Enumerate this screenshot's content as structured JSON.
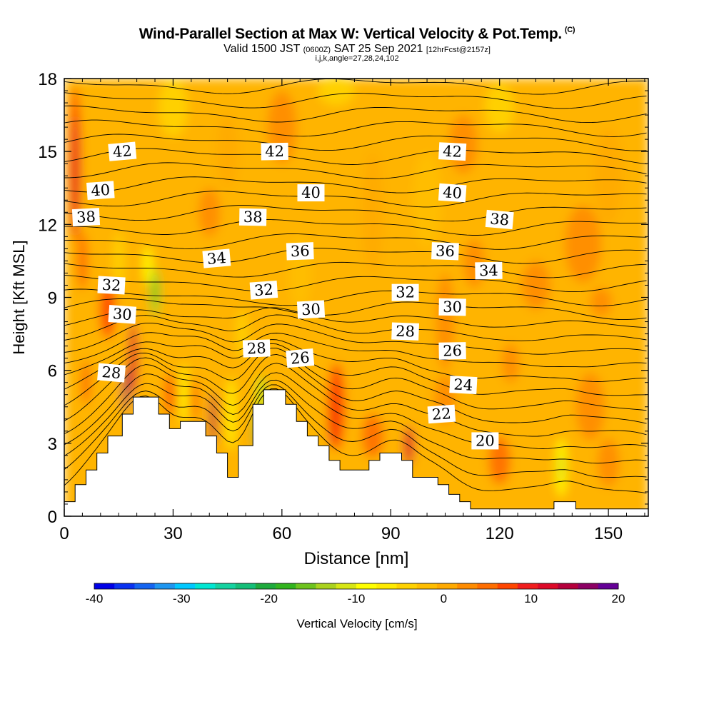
{
  "title": {
    "main": "Wind-Parallel Section at Max W: Vertical Velocity & Pot.Temp.",
    "copyright": "(C)",
    "valid_prefix": "Valid 1500 JST",
    "valid_utc": "(0600Z)",
    "valid_date": "SAT 25 Sep 2021",
    "forecast": "[12hrFcst@2157z]",
    "indices": "i,j,k,angle=27,28,24,102"
  },
  "chart_data": {
    "type": "heatmap",
    "xlabel": "Distance [nm]",
    "ylabel": "Height [Kft MSL]",
    "xlim": [
      0,
      161
    ],
    "ylim": [
      0,
      18
    ],
    "x_ticks": [
      "0",
      "30",
      "60",
      "90",
      "120",
      "150"
    ],
    "y_ticks": [
      "0",
      "3",
      "6",
      "9",
      "12",
      "15",
      "18"
    ],
    "colorbar": {
      "label": "Vertical Velocity [cm/s]",
      "min": -40,
      "max": 20,
      "step": 2.5,
      "tick_labels": [
        "-40",
        "-30",
        "-20",
        "-10",
        "0",
        "10",
        "20"
      ],
      "colors": [
        "#0000e6",
        "#0a32f0",
        "#1464f0",
        "#1e96f0",
        "#00c8ff",
        "#00e6d2",
        "#14d2a0",
        "#14be78",
        "#1eaa3c",
        "#32b41e",
        "#6ec31e",
        "#aad21e",
        "#d7e614",
        "#ffff00",
        "#ffeb00",
        "#ffd200",
        "#ffbe00",
        "#ffaa00",
        "#ff8c00",
        "#ff6e00",
        "#ff4600",
        "#f01e1e",
        "#dc0a28",
        "#b4003c",
        "#8c0064",
        "#640096"
      ]
    },
    "theta_contour_labels": [
      {
        "value": "42",
        "x": 16,
        "y": 15.0
      },
      {
        "value": "42",
        "x": 58,
        "y": 15.0
      },
      {
        "value": "42",
        "x": 107,
        "y": 15.0
      },
      {
        "value": "40",
        "x": 10,
        "y": 13.4
      },
      {
        "value": "40",
        "x": 68,
        "y": 13.3
      },
      {
        "value": "40",
        "x": 107,
        "y": 13.3
      },
      {
        "value": "38",
        "x": 6,
        "y": 12.3
      },
      {
        "value": "38",
        "x": 52,
        "y": 12.3
      },
      {
        "value": "38",
        "x": 120,
        "y": 12.2
      },
      {
        "value": "36",
        "x": 65,
        "y": 10.9
      },
      {
        "value": "36",
        "x": 105,
        "y": 10.9
      },
      {
        "value": "34",
        "x": 42,
        "y": 10.6
      },
      {
        "value": "34",
        "x": 117,
        "y": 10.1
      },
      {
        "value": "32",
        "x": 13,
        "y": 9.5
      },
      {
        "value": "32",
        "x": 55,
        "y": 9.3
      },
      {
        "value": "32",
        "x": 94,
        "y": 9.2
      },
      {
        "value": "30",
        "x": 16,
        "y": 8.3
      },
      {
        "value": "30",
        "x": 68,
        "y": 8.5
      },
      {
        "value": "30",
        "x": 107,
        "y": 8.6
      },
      {
        "value": "28",
        "x": 13,
        "y": 5.9
      },
      {
        "value": "28",
        "x": 53,
        "y": 6.9
      },
      {
        "value": "28",
        "x": 94,
        "y": 7.6
      },
      {
        "value": "26",
        "x": 65,
        "y": 6.5
      },
      {
        "value": "26",
        "x": 107,
        "y": 6.8
      },
      {
        "value": "24",
        "x": 110,
        "y": 5.4
      },
      {
        "value": "22",
        "x": 104,
        "y": 4.2
      },
      {
        "value": "20",
        "x": 116,
        "y": 3.1
      }
    ],
    "terrain": [
      [
        0,
        0.6
      ],
      [
        3,
        0.6
      ],
      [
        3,
        1.3
      ],
      [
        6,
        1.3
      ],
      [
        6,
        1.9
      ],
      [
        9,
        1.9
      ],
      [
        9,
        2.6
      ],
      [
        12,
        2.6
      ],
      [
        12,
        3.3
      ],
      [
        16,
        3.3
      ],
      [
        16,
        4.2
      ],
      [
        19,
        4.2
      ],
      [
        19,
        4.9
      ],
      [
        26,
        4.9
      ],
      [
        26,
        4.2
      ],
      [
        29,
        4.2
      ],
      [
        29,
        3.6
      ],
      [
        32,
        3.6
      ],
      [
        32,
        3.9
      ],
      [
        39,
        3.9
      ],
      [
        39,
        3.3
      ],
      [
        42,
        3.3
      ],
      [
        42,
        2.6
      ],
      [
        45,
        2.6
      ],
      [
        45,
        1.6
      ],
      [
        48,
        1.6
      ],
      [
        48,
        2.9
      ],
      [
        52,
        2.9
      ],
      [
        52,
        4.6
      ],
      [
        55,
        4.6
      ],
      [
        55,
        5.2
      ],
      [
        61,
        5.2
      ],
      [
        61,
        4.6
      ],
      [
        64,
        4.6
      ],
      [
        64,
        3.9
      ],
      [
        67,
        3.9
      ],
      [
        67,
        3.3
      ],
      [
        70,
        3.3
      ],
      [
        70,
        2.9
      ],
      [
        73,
        2.9
      ],
      [
        73,
        2.3
      ],
      [
        76,
        2.3
      ],
      [
        76,
        1.9
      ],
      [
        84,
        1.9
      ],
      [
        84,
        2.3
      ],
      [
        87,
        2.3
      ],
      [
        87,
        2.6
      ],
      [
        93,
        2.6
      ],
      [
        93,
        2.3
      ],
      [
        96,
        2.3
      ],
      [
        96,
        1.6
      ],
      [
        103,
        1.6
      ],
      [
        103,
        1.3
      ],
      [
        106,
        1.3
      ],
      [
        106,
        0.9
      ],
      [
        109,
        0.9
      ],
      [
        109,
        0.6
      ],
      [
        112,
        0.6
      ],
      [
        112,
        0.3
      ],
      [
        135,
        0.3
      ],
      [
        135,
        0.6
      ],
      [
        141,
        0.6
      ],
      [
        141,
        0.3
      ],
      [
        161,
        0.3
      ]
    ]
  }
}
